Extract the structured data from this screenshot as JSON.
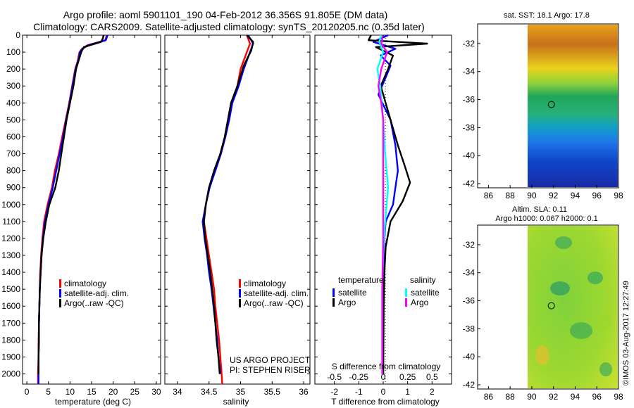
{
  "title_line1": "Argo profile: aoml 5901101_190 04-Feb-2012 36.356S 91.805E (DM data)",
  "title_line2": "Climatology: CARS2009. Satellite-adjusted climatology: synTS_20120205.nc (0.35d later)",
  "map_top_title": "sat. SST: 18.1 Argo: 17.8",
  "map_bottom_title1": "Altim. SLA: 0.11",
  "map_bottom_title2": "Argo h1000: 0.067 h2000: 0.1",
  "credit": "US ARGO PROJECT",
  "pi": "PI: STEPHEN RISER",
  "watermark": "©IMOS 03-Aug-2017 12:27:49",
  "chart_data": [
    {
      "id": "temperature",
      "type": "line",
      "xlabel": "temperature (deg C)",
      "ylabel": "depth (m)",
      "xlim": [
        -1,
        31
      ],
      "ylim": [
        2060,
        0
      ],
      "xticks": [
        0,
        5,
        10,
        15,
        20,
        25,
        30
      ],
      "yticks": [
        0,
        100,
        200,
        300,
        400,
        500,
        600,
        700,
        800,
        900,
        1000,
        1100,
        1200,
        1300,
        1400,
        1500,
        1600,
        1700,
        1800,
        1900,
        2000
      ],
      "legend": {
        "position": "bottom-center",
        "entries": [
          {
            "label": "climatology",
            "color": "#ff0000"
          },
          {
            "label": "satellite-adj. clim.",
            "color": "#0000ff"
          },
          {
            "label": "Argo(..raw -QC)",
            "color": "#000000"
          }
        ]
      },
      "series": [
        {
          "name": "climatology",
          "color": "#ff0000",
          "points": [
            [
              18.5,
              0
            ],
            [
              18.2,
              30
            ],
            [
              14,
              60
            ],
            [
              12.8,
              80
            ],
            [
              12.2,
              100
            ],
            [
              11.8,
              150
            ],
            [
              11.2,
              200
            ],
            [
              10.5,
              300
            ],
            [
              9.8,
              400
            ],
            [
              9.0,
              500
            ],
            [
              8.2,
              600
            ],
            [
              7.4,
              700
            ],
            [
              6.5,
              800
            ],
            [
              5.8,
              900
            ],
            [
              4.8,
              1000
            ],
            [
              4.0,
              1100
            ],
            [
              3.6,
              1200
            ],
            [
              3.3,
              1300
            ],
            [
              3.1,
              1400
            ],
            [
              3.0,
              1500
            ],
            [
              2.9,
              1600
            ],
            [
              2.8,
              1700
            ],
            [
              2.7,
              1800
            ],
            [
              2.7,
              1900
            ],
            [
              2.6,
              2000
            ],
            [
              2.6,
              2060
            ]
          ]
        },
        {
          "name": "satellite",
          "color": "#0000ff",
          "points": [
            [
              18.7,
              0
            ],
            [
              18.3,
              30
            ],
            [
              14.2,
              60
            ],
            [
              12.9,
              80
            ],
            [
              12.3,
              100
            ],
            [
              11.9,
              150
            ],
            [
              11.3,
              200
            ],
            [
              10.6,
              300
            ],
            [
              9.9,
              400
            ],
            [
              9.1,
              500
            ],
            [
              8.4,
              600
            ],
            [
              7.6,
              700
            ],
            [
              6.8,
              800
            ],
            [
              6.0,
              900
            ],
            [
              5.0,
              1000
            ],
            [
              4.2,
              1100
            ],
            [
              3.7,
              1200
            ],
            [
              3.4,
              1300
            ],
            [
              3.2,
              1400
            ],
            [
              3.0,
              1500
            ],
            [
              2.9,
              1600
            ],
            [
              2.8,
              1700
            ],
            [
              2.8,
              1800
            ],
            [
              2.7,
              1900
            ],
            [
              2.7,
              2000
            ],
            [
              2.7,
              2060
            ]
          ]
        },
        {
          "name": "Argo",
          "color": "#000000",
          "points": [
            [
              17.8,
              0
            ],
            [
              17.6,
              20
            ],
            [
              17.2,
              40
            ],
            [
              13.2,
              70
            ],
            [
              12.6,
              100
            ],
            [
              12.0,
              150
            ],
            [
              11.4,
              200
            ],
            [
              10.8,
              300
            ],
            [
              10.0,
              400
            ],
            [
              9.2,
              500
            ],
            [
              8.6,
              600
            ],
            [
              8.0,
              700
            ],
            [
              7.4,
              800
            ],
            [
              6.6,
              900
            ],
            [
              5.2,
              1000
            ],
            [
              4.4,
              1100
            ],
            [
              3.8,
              1200
            ],
            [
              3.4,
              1300
            ],
            [
              3.2,
              1400
            ],
            [
              3.0,
              1500
            ],
            [
              2.9,
              1600
            ],
            [
              2.8,
              1700
            ],
            [
              2.8,
              1800
            ],
            [
              2.7,
              1900
            ],
            [
              2.7,
              2000
            ]
          ]
        }
      ]
    },
    {
      "id": "salinity",
      "type": "line",
      "xlabel": "salinity",
      "xlim": [
        33.8,
        36.1
      ],
      "ylim": [
        2060,
        0
      ],
      "xticks": [
        34,
        34.5,
        35,
        35.5,
        36
      ],
      "xticklabels": [
        "34",
        "34.5",
        "35",
        "35.5",
        "36"
      ],
      "legend": {
        "position": "bottom-right",
        "entries": [
          {
            "label": "climatology",
            "color": "#ff0000"
          },
          {
            "label": "satellite-adj. clim.",
            "color": "#0000ff"
          },
          {
            "label": "Argo(..raw -QC)",
            "color": "#000000"
          }
        ]
      },
      "series": [
        {
          "name": "climatology",
          "color": "#ff0000",
          "points": [
            [
              35.1,
              0
            ],
            [
              35.15,
              50
            ],
            [
              35.1,
              100
            ],
            [
              35.0,
              200
            ],
            [
              34.95,
              300
            ],
            [
              34.85,
              400
            ],
            [
              34.8,
              500
            ],
            [
              34.75,
              600
            ],
            [
              34.68,
              700
            ],
            [
              34.6,
              800
            ],
            [
              34.5,
              900
            ],
            [
              34.45,
              1000
            ],
            [
              34.42,
              1100
            ],
            [
              34.46,
              1200
            ],
            [
              34.5,
              1300
            ],
            [
              34.54,
              1400
            ],
            [
              34.58,
              1500
            ],
            [
              34.6,
              1600
            ],
            [
              34.63,
              1700
            ],
            [
              34.66,
              1800
            ],
            [
              34.68,
              1900
            ],
            [
              34.7,
              2000
            ],
            [
              34.71,
              2060
            ]
          ]
        },
        {
          "name": "satellite",
          "color": "#0000ff",
          "points": [
            [
              35.12,
              0
            ],
            [
              35.2,
              50
            ],
            [
              35.15,
              100
            ],
            [
              35.05,
              200
            ],
            [
              34.97,
              300
            ],
            [
              34.87,
              400
            ],
            [
              34.82,
              500
            ],
            [
              34.76,
              600
            ],
            [
              34.69,
              700
            ],
            [
              34.6,
              800
            ],
            [
              34.51,
              900
            ],
            [
              34.45,
              1000
            ],
            [
              34.4,
              1100
            ],
            [
              34.43,
              1200
            ],
            [
              34.47,
              1300
            ],
            [
              34.5,
              1400
            ],
            [
              34.54,
              1500
            ],
            [
              34.57,
              1600
            ],
            [
              34.6,
              1700
            ],
            [
              34.63,
              1800
            ],
            [
              34.65,
              1900
            ],
            [
              34.68,
              2000
            ]
          ]
        },
        {
          "name": "Argo",
          "color": "#000000",
          "points": [
            [
              35.1,
              0
            ],
            [
              35.2,
              40
            ],
            [
              35.17,
              90
            ],
            [
              35.05,
              180
            ],
            [
              34.95,
              300
            ],
            [
              34.85,
              400
            ],
            [
              34.8,
              500
            ],
            [
              34.75,
              600
            ],
            [
              34.68,
              700
            ],
            [
              34.58,
              800
            ],
            [
              34.5,
              900
            ],
            [
              34.45,
              1000
            ],
            [
              34.42,
              1100
            ],
            [
              34.44,
              1200
            ],
            [
              34.48,
              1300
            ],
            [
              34.52,
              1400
            ],
            [
              34.55,
              1500
            ],
            [
              34.58,
              1600
            ],
            [
              34.6,
              1700
            ],
            [
              34.62,
              1800
            ],
            [
              34.65,
              1900
            ],
            [
              34.67,
              2000
            ]
          ]
        }
      ]
    },
    {
      "id": "differences",
      "type": "line",
      "xlabel": "T difference from climatology",
      "x2label": "S difference from climatology",
      "xlim": [
        -2.8,
        2.8
      ],
      "ylim": [
        2060,
        0
      ],
      "xticks": [
        -2,
        -1,
        0,
        1,
        2
      ],
      "x2ticks": [
        "-0.5",
        "-0.25",
        "0",
        "0.25",
        "0.5"
      ],
      "legend": {
        "position": "bottom",
        "entries": [
          {
            "group": "temperature",
            "label": "satellite",
            "color": "#0000ff"
          },
          {
            "group": "temperature",
            "label": "Argo",
            "color": "#000000"
          },
          {
            "group": "salinity",
            "label": "satellite",
            "color": "#00ffff"
          },
          {
            "group": "salinity",
            "label": "Argo",
            "color": "#ff00ff"
          }
        ]
      },
      "series": [
        {
          "name": "temperature satellite",
          "color": "#0000ff",
          "points": [
            [
              0.2,
              0
            ],
            [
              -0.4,
              40
            ],
            [
              0.5,
              80
            ],
            [
              -0.1,
              120
            ],
            [
              0.3,
              180
            ],
            [
              0.1,
              250
            ],
            [
              -0.2,
              350
            ],
            [
              0.3,
              500
            ],
            [
              0.5,
              650
            ],
            [
              0.6,
              800
            ],
            [
              0.5,
              900
            ],
            [
              0.4,
              1000
            ],
            [
              0.1,
              1100
            ],
            [
              0.05,
              1200
            ],
            [
              0.02,
              1400
            ],
            [
              0,
              1600
            ],
            [
              0,
              2000
            ]
          ]
        },
        {
          "name": "temperature Argo",
          "color": "#000000",
          "points": [
            [
              -0.5,
              0
            ],
            [
              -0.6,
              30
            ],
            [
              1.8,
              50
            ],
            [
              -0.3,
              70
            ],
            [
              0.4,
              120
            ],
            [
              0.2,
              200
            ],
            [
              -0.1,
              300
            ],
            [
              0.3,
              500
            ],
            [
              0.6,
              650
            ],
            [
              0.9,
              780
            ],
            [
              1.1,
              870
            ],
            [
              0.8,
              980
            ],
            [
              0.3,
              1100
            ],
            [
              0.1,
              1250
            ],
            [
              0.05,
              1400
            ],
            [
              0.02,
              1600
            ],
            [
              0,
              2000
            ]
          ]
        },
        {
          "name": "salinity satellite",
          "color": "#00ffff",
          "points": [
            [
              -0.02,
              0
            ],
            [
              -0.04,
              40
            ],
            [
              0.0,
              100
            ],
            [
              -0.06,
              200
            ],
            [
              -0.03,
              300
            ],
            [
              0.0,
              500
            ],
            [
              0.02,
              700
            ],
            [
              0.05,
              900
            ],
            [
              0.02,
              1100
            ],
            [
              0.0,
              1300
            ],
            [
              -0.01,
              1500
            ],
            [
              -0.01,
              1800
            ],
            [
              -0.01,
              2000
            ]
          ]
        },
        {
          "name": "salinity Argo",
          "color": "#ff00ff",
          "points": [
            [
              0.0,
              0
            ],
            [
              -0.02,
              50
            ],
            [
              0.04,
              100
            ],
            [
              -0.02,
              200
            ],
            [
              -0.05,
              300
            ],
            [
              -0.02,
              400
            ],
            [
              0.0,
              500
            ],
            [
              0.0,
              800
            ],
            [
              0.0,
              1200
            ],
            [
              -0.01,
              1500
            ],
            [
              -0.01,
              2000
            ]
          ]
        }
      ]
    },
    {
      "id": "map_sst",
      "type": "heatmap",
      "title": "sat. SST: 18.1 Argo: 17.8",
      "xlim": [
        85,
        98
      ],
      "ylim": [
        -42.3,
        -30.6
      ],
      "xticks": [
        86,
        88,
        90,
        92,
        94,
        96,
        98
      ],
      "yticks": [
        -32,
        -34,
        -36,
        -38,
        -40,
        -42
      ],
      "data_extent_lon": [
        90,
        98
      ],
      "float_position": [
        91.805,
        -36.356
      ]
    },
    {
      "id": "map_sla",
      "type": "heatmap",
      "title": "Altim. SLA: 0.11",
      "xlim": [
        85,
        98
      ],
      "ylim": [
        -42.3,
        -30.6
      ],
      "xticks": [
        86,
        88,
        90,
        92,
        94,
        96,
        98
      ],
      "yticks": [
        -32,
        -34,
        -36,
        -38,
        -40,
        -42
      ],
      "data_extent_lon": [
        90,
        98
      ],
      "float_position": [
        91.805,
        -36.356
      ]
    }
  ]
}
